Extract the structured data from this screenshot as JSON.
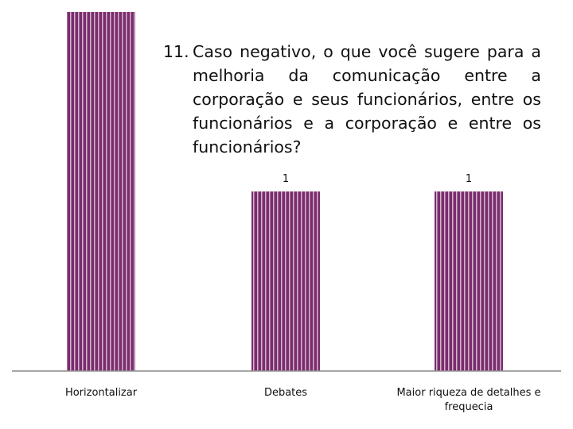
{
  "title": {
    "number": "11.",
    "text": "Caso negativo, o que você sugere para a melhoria da comunicação entre a corporação e seus funcionários, entre os funcionários e a corporação e entre os funcionários?"
  },
  "colors": {
    "bar": "#7b2d6e",
    "bar_stripe": "#e8d6e4",
    "axis": "#8c8c8c"
  },
  "chart_data": {
    "type": "bar",
    "categories": [
      "Horizontalizar",
      "Debates",
      "Maior riqueza de detalhes e frequecia"
    ],
    "values": [
      2,
      1,
      1
    ],
    "data_labels": [
      "",
      "1",
      "1"
    ],
    "title": "11.  Caso negativo, o que você sugere para a melhoria da comunicação entre a corporação e seus funcionários, entre os funcionários e a corporação e entre os funcionários?",
    "ylim": [
      0,
      2
    ],
    "grid": false,
    "legend": "none"
  }
}
